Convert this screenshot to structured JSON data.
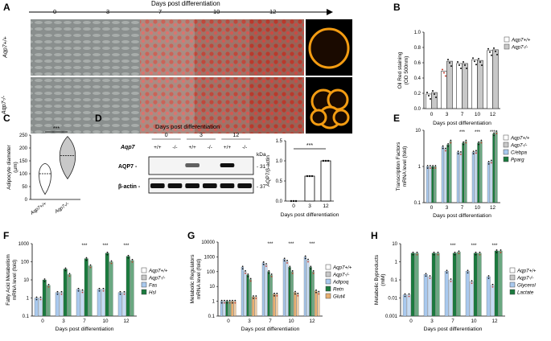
{
  "panel_letters": [
    "A",
    "B",
    "C",
    "D",
    "E",
    "F",
    "G",
    "H"
  ],
  "panelA": {
    "axis_title": "Days post differentiation",
    "days": [
      "0",
      "3",
      "7",
      "10",
      "12"
    ],
    "rows": [
      "Aqp7+/+",
      "Aqp7-/-"
    ]
  },
  "colors": {
    "wt": "#ffffff",
    "ko": "#c8c8c8",
    "blue": "#a9c9ee",
    "green": "#1b7a3e",
    "orange": "#e8b071",
    "red": "#c0392b"
  },
  "significance": "***",
  "chart_data": [
    {
      "id": "B",
      "type": "bar",
      "ylabel": "Oil Red staining (OD 500nm)",
      "xlabel": "Days post differentiation",
      "categories": [
        "0",
        "3",
        "7",
        "10",
        "12"
      ],
      "yticks": [
        "0.0",
        "0.2",
        "0.4",
        "0.6",
        "0.8",
        "1.0"
      ],
      "ylim": [
        0,
        1.0
      ],
      "legend": [
        "Aqp7+/+",
        "Aqp7-/-"
      ],
      "series": [
        {
          "name": "Aqp7+/+",
          "values": [
            0.19,
            0.49,
            0.59,
            0.64,
            0.76
          ]
        },
        {
          "name": "Aqp7-/-",
          "values": [
            0.21,
            0.62,
            0.59,
            0.63,
            0.77
          ]
        }
      ]
    },
    {
      "id": "C",
      "type": "violin",
      "ylabel": "Adipocyte diameter (µm)",
      "categories": [
        "Aqp7+/+",
        "Aqp7-/-"
      ],
      "yticks": [
        "0",
        "50",
        "100",
        "150",
        "200",
        "250"
      ],
      "ylim": [
        0,
        250
      ],
      "medians": [
        100,
        170
      ],
      "significance": "***"
    },
    {
      "id": "D",
      "type": "bar",
      "ylabel": "AQP7/β-actin",
      "xlabel": "Days post differentiation",
      "categories": [
        "0",
        "3",
        "12"
      ],
      "yticks": [
        "0.0",
        "0.5",
        "1.0",
        "1.5"
      ],
      "ylim": [
        0,
        1.5
      ],
      "values": [
        0.0,
        0.62,
        1.0
      ],
      "significance": "***"
    },
    {
      "id": "E",
      "type": "bar",
      "ylabel": "Transcription Factors mRNA level (fold)",
      "xlabel": "Days post differentiation",
      "categories": [
        "0",
        "3",
        "7",
        "10",
        "12"
      ],
      "yticks": [
        "0.1",
        "1",
        "10"
      ],
      "legend": [
        "Aqp7+/+",
        "Aqp7-/-",
        "C/ebpa",
        "Pparg"
      ],
      "series": [
        {
          "name": "Aqp7+/+ C/ebpa",
          "values": [
            1,
            3.5,
            2.5,
            2.5,
            1.3
          ]
        },
        {
          "name": "Aqp7-/- C/ebpa",
          "values": [
            1,
            3,
            2.4,
            2.6,
            1.4
          ]
        },
        {
          "name": "Aqp7+/+ Pparg",
          "values": [
            1,
            4,
            4.5,
            4.5,
            8
          ]
        },
        {
          "name": "Aqp7-/- Pparg",
          "values": [
            1,
            5,
            5,
            5,
            9
          ]
        }
      ]
    },
    {
      "id": "F",
      "type": "bar",
      "ylabel": "Fatty Acid Metabolism mRNA level (fold)",
      "xlabel": "Days post differentiation",
      "categories": [
        "0",
        "3",
        "7",
        "10",
        "12"
      ],
      "yticks": [
        "0.1",
        "1",
        "10",
        "100",
        "1000"
      ],
      "legend": [
        "Aqp7+/+",
        "Aqp7-/-",
        "Fas",
        "Hsl"
      ],
      "series": [
        {
          "name": "Aqp7+/+ Fas",
          "values": [
            1,
            2,
            3,
            3,
            2
          ]
        },
        {
          "name": "Aqp7-/- Fas",
          "values": [
            1,
            2,
            2.5,
            3,
            2
          ]
        },
        {
          "name": "Aqp7+/+ Hsl",
          "values": [
            10,
            40,
            150,
            300,
            200
          ]
        },
        {
          "name": "Aqp7-/- Hsl",
          "values": [
            5,
            20,
            60,
            100,
            120
          ]
        }
      ]
    },
    {
      "id": "G",
      "type": "bar",
      "ylabel": "Metabolic Regulators mRNA level (fold)",
      "xlabel": "Days post differentiation",
      "categories": [
        "0",
        "3",
        "7",
        "10",
        "12"
      ],
      "yticks": [
        "0.1",
        "1",
        "10",
        "100",
        "1000",
        "10000"
      ],
      "legend": [
        "Aqp7+/+",
        "Aqp7-/-",
        "Adipoq",
        "Retn",
        "Glut4"
      ],
      "series": [
        {
          "name": "Aqp7+/+ Adipoq",
          "values": [
            1,
            200,
            400,
            700,
            1000
          ]
        },
        {
          "name": "Aqp7-/- Adipoq",
          "values": [
            1,
            100,
            300,
            500,
            600
          ]
        },
        {
          "name": "Aqp7+/+ Retn",
          "values": [
            1,
            60,
            100,
            200,
            200
          ]
        },
        {
          "name": "Aqp7-/- Retn",
          "values": [
            1,
            30,
            60,
            100,
            100
          ]
        },
        {
          "name": "Aqp7+/+ Glut4",
          "values": [
            1,
            2,
            3,
            4,
            5
          ]
        },
        {
          "name": "Aqp7-/- Glut4",
          "values": [
            1,
            2,
            3,
            3,
            4
          ]
        }
      ]
    },
    {
      "id": "H",
      "type": "bar",
      "ylabel": "Metabolic Byproducts (mM)",
      "xlabel": "Days post differentiation",
      "categories": [
        "0",
        "3",
        "7",
        "10",
        "12"
      ],
      "yticks": [
        "0.001",
        "0.01",
        "0.1",
        "1",
        "10"
      ],
      "legend": [
        "Aqp7+/+",
        "Aqp7-/-",
        "Glycerol",
        "Lactate"
      ],
      "series": [
        {
          "name": "Aqp7+/+ Glycerol",
          "values": [
            0.015,
            0.2,
            0.3,
            0.3,
            0.15
          ]
        },
        {
          "name": "Aqp7-/- Glycerol",
          "values": [
            0.015,
            0.15,
            0.1,
            0.08,
            0.05
          ]
        },
        {
          "name": "Aqp7+/+ Lactate",
          "values": [
            3,
            3,
            3,
            3,
            4
          ]
        },
        {
          "name": "Aqp7-/- Lactate",
          "values": [
            3,
            3,
            3.5,
            3,
            4
          ]
        }
      ]
    }
  ],
  "panelD_blot": {
    "title": "Days post differentiation",
    "days": [
      "0",
      "3",
      "12"
    ],
    "genotype_label": "Aqp7",
    "genotypes": [
      "+/+",
      "-/-",
      "+/+",
      "-/-",
      "+/+",
      "-/-"
    ],
    "rows": [
      "AQP7 -",
      "β-actin -"
    ],
    "kda_title": "kDa",
    "kda": [
      "- 31",
      "- 37"
    ]
  }
}
